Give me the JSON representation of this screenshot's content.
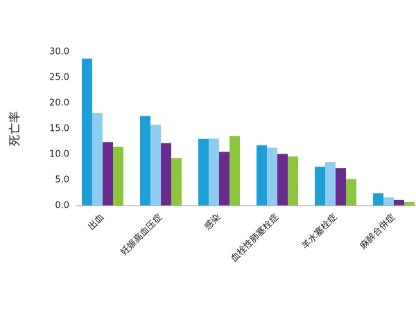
{
  "chart_data": {
    "type": "bar",
    "y_label": "死亡率",
    "categories": [
      "出血",
      "妊娠高血压症",
      "感染",
      "血栓性肺塞栓症",
      "羊水塞栓症",
      "麻醉合併症"
    ],
    "series": [
      {
        "color": "#1e9fd8",
        "values": [
          28.7,
          17.5,
          13.0,
          11.8,
          7.6,
          2.4
        ]
      },
      {
        "color": "#8fcdf0",
        "values": [
          18.1,
          15.8,
          13.1,
          11.3,
          8.5,
          1.6
        ]
      },
      {
        "color": "#6a2a8e",
        "values": [
          12.4,
          12.2,
          10.5,
          10.1,
          7.3,
          1.1
        ]
      },
      {
        "color": "#8cc63f",
        "values": [
          11.5,
          9.3,
          13.6,
          9.6,
          5.2,
          0.7
        ]
      }
    ],
    "ylim": [
      0,
      30
    ],
    "yticks": [
      {
        "value": 0,
        "label": "0.0"
      },
      {
        "value": 5,
        "label": "5.0"
      },
      {
        "value": 10,
        "label": "10.0"
      },
      {
        "value": 15,
        "label": "15.0"
      },
      {
        "value": 20,
        "label": "20.0"
      },
      {
        "value": 25,
        "label": "25.0"
      },
      {
        "value": 30,
        "label": "30.0"
      }
    ],
    "grid": false
  }
}
